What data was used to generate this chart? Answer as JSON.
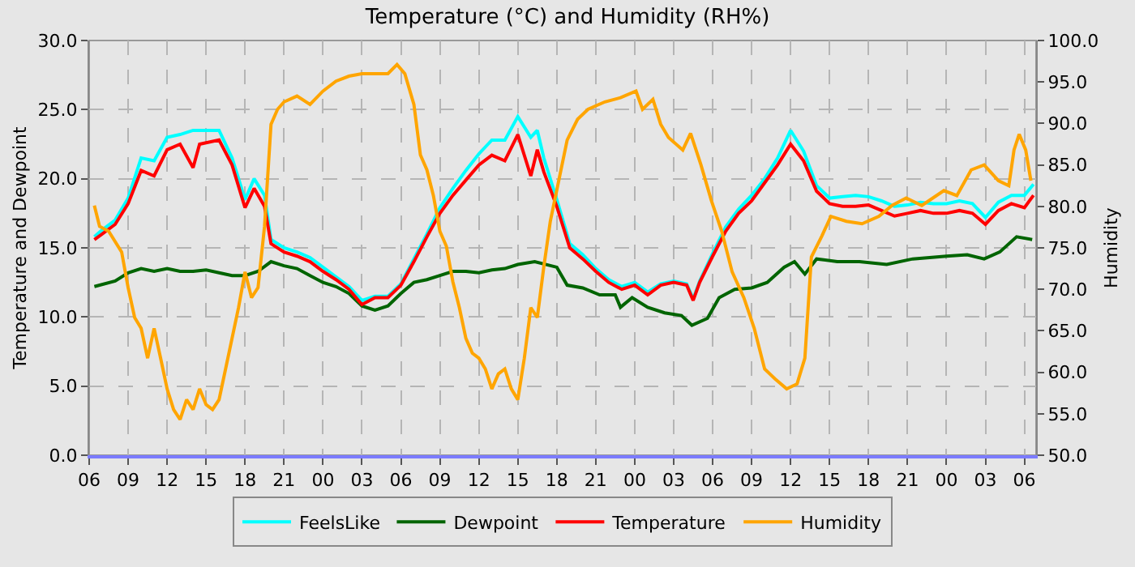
{
  "chart_data": {
    "type": "line",
    "title": "Temperature (°C) and Humidity (RH%)",
    "ylabel": "Temperature and Dewpoint",
    "y2label": "Humidity",
    "xlim": [
      6,
      78.9
    ],
    "xticks": [
      {
        "value": 6,
        "label": "06"
      },
      {
        "value": 9,
        "label": "09"
      },
      {
        "value": 12,
        "label": "12"
      },
      {
        "value": 15,
        "label": "15"
      },
      {
        "value": 18,
        "label": "18"
      },
      {
        "value": 21,
        "label": "21"
      },
      {
        "value": 24,
        "label": "00"
      },
      {
        "value": 27,
        "label": "03"
      },
      {
        "value": 30,
        "label": "06"
      },
      {
        "value": 33,
        "label": "09"
      },
      {
        "value": 36,
        "label": "12"
      },
      {
        "value": 39,
        "label": "15"
      },
      {
        "value": 42,
        "label": "18"
      },
      {
        "value": 45,
        "label": "21"
      },
      {
        "value": 48,
        "label": "00"
      },
      {
        "value": 51,
        "label": "03"
      },
      {
        "value": 54,
        "label": "06"
      },
      {
        "value": 57,
        "label": "09"
      },
      {
        "value": 60,
        "label": "12"
      },
      {
        "value": 63,
        "label": "15"
      },
      {
        "value": 66,
        "label": "18"
      },
      {
        "value": 69,
        "label": "21"
      },
      {
        "value": 72,
        "label": "00"
      },
      {
        "value": 75,
        "label": "03"
      },
      {
        "value": 78,
        "label": "06"
      }
    ],
    "ylim": [
      0,
      30
    ],
    "yticks": [
      {
        "value": 0,
        "label": "0.0"
      },
      {
        "value": 5,
        "label": "5.0"
      },
      {
        "value": 10,
        "label": "10.0"
      },
      {
        "value": 15,
        "label": "15.0"
      },
      {
        "value": 20,
        "label": "20.0"
      },
      {
        "value": 25,
        "label": "25.0"
      },
      {
        "value": 30,
        "label": "30.0"
      }
    ],
    "y2lim": [
      50,
      100
    ],
    "y2ticks": [
      {
        "value": 50,
        "label": "50.0"
      },
      {
        "value": 55,
        "label": "55.0"
      },
      {
        "value": 60,
        "label": "60.0"
      },
      {
        "value": 65,
        "label": "65.0"
      },
      {
        "value": 70,
        "label": "70.0"
      },
      {
        "value": 75,
        "label": "75.0"
      },
      {
        "value": 80,
        "label": "80.0"
      },
      {
        "value": 85,
        "label": "85.0"
      },
      {
        "value": 90,
        "label": "90.0"
      },
      {
        "value": 95,
        "label": "95.0"
      },
      {
        "value": 100,
        "label": "100.0"
      }
    ],
    "grid": true,
    "legend": "bottom",
    "marker": "none",
    "line_style": "solid",
    "series": [
      {
        "name": "FeelsLike",
        "color": "#00ffff",
        "x": [
          6.4,
          7,
          8,
          9,
          10,
          11,
          12,
          13,
          14,
          14.5,
          15,
          16,
          17,
          18,
          18.7,
          19.5,
          20,
          21,
          22,
          23,
          24,
          25,
          26,
          27,
          28,
          29,
          30,
          31,
          32,
          33,
          34,
          35,
          36,
          37,
          38,
          39,
          40,
          40.5,
          41,
          42,
          43,
          44,
          45,
          46,
          47,
          48,
          49,
          50,
          51,
          52,
          52.5,
          53,
          54,
          55,
          56,
          57,
          58,
          59,
          60,
          61,
          62,
          63,
          64,
          65,
          66,
          67,
          68,
          69,
          70,
          71,
          72,
          73,
          74,
          75,
          76,
          77,
          78,
          78.7
        ],
        "values": [
          15.8,
          16.3,
          17.0,
          18.6,
          21.5,
          21.3,
          23.0,
          23.2,
          23.5,
          23.5,
          23.5,
          23.5,
          21.5,
          18.5,
          20.0,
          18.8,
          15.6,
          15.0,
          14.7,
          14.3,
          13.6,
          12.9,
          12.2,
          11.2,
          11.5,
          11.5,
          12.4,
          14.2,
          16.0,
          17.9,
          19.3,
          20.6,
          21.8,
          22.8,
          22.8,
          24.5,
          23.0,
          23.5,
          21.5,
          18.5,
          15.3,
          14.5,
          13.5,
          12.7,
          12.2,
          12.5,
          11.8,
          12.4,
          12.6,
          12.4,
          11.3,
          12.6,
          14.6,
          16.5,
          17.8,
          18.8,
          20.0,
          21.5,
          23.5,
          22.0,
          19.5,
          18.6,
          18.7,
          18.8,
          18.7,
          18.4,
          18.0,
          18.1,
          18.3,
          18.2,
          18.2,
          18.4,
          18.2,
          17.2,
          18.3,
          18.8,
          18.8,
          19.6
        ]
      },
      {
        "name": "Dewpoint",
        "color": "#006400",
        "x": [
          6.4,
          8,
          9,
          10,
          11,
          12,
          13,
          14,
          15,
          16,
          17,
          18,
          19,
          20,
          21,
          22,
          23,
          24,
          25,
          26,
          27,
          28,
          29,
          30,
          31,
          32,
          33,
          34,
          35,
          36,
          37,
          38,
          39,
          40.3,
          42.0,
          42.8,
          44.0,
          45.3,
          46.5,
          46.9,
          47.8,
          49.0,
          50.3,
          51.6,
          52.4,
          53.6,
          54.5,
          55.7,
          57.0,
          58.2,
          59.5,
          60.3,
          61.1,
          62.0,
          63.6,
          65.3,
          67.4,
          69.4,
          72.0,
          73.6,
          74.9,
          76.1,
          77.4,
          78.6
        ],
        "values": [
          12.2,
          12.6,
          13.2,
          13.5,
          13.3,
          13.5,
          13.3,
          13.3,
          13.4,
          13.2,
          13.0,
          13.0,
          13.3,
          14.0,
          13.7,
          13.5,
          13.0,
          12.5,
          12.2,
          11.7,
          10.8,
          10.5,
          10.8,
          11.7,
          12.5,
          12.7,
          13.0,
          13.3,
          13.3,
          13.2,
          13.4,
          13.5,
          13.8,
          14.0,
          13.6,
          12.3,
          12.1,
          11.6,
          11.6,
          10.7,
          11.4,
          10.7,
          10.3,
          10.1,
          9.4,
          9.9,
          11.4,
          12.0,
          12.1,
          12.5,
          13.6,
          14.0,
          13.1,
          14.2,
          14.0,
          14.0,
          13.8,
          14.2,
          14.4,
          14.5,
          14.2,
          14.7,
          15.8,
          15.6
        ]
      },
      {
        "name": "Temperature",
        "color": "#ff0000",
        "x": [
          6.4,
          7,
          8,
          9,
          10,
          11,
          12,
          13,
          14,
          14.5,
          15,
          16,
          17,
          18,
          18.7,
          19.5,
          20,
          21,
          22,
          23,
          24,
          25,
          26,
          27,
          28,
          29,
          30,
          31,
          32,
          33,
          34,
          35,
          36,
          37,
          38,
          39,
          40,
          40.5,
          41,
          42,
          43,
          44,
          45,
          46,
          47,
          48,
          49,
          50,
          51,
          52,
          52.5,
          53,
          54,
          55,
          56,
          57,
          58,
          59,
          60,
          61,
          62,
          63,
          64,
          65,
          66,
          67,
          68,
          69,
          70,
          71,
          72,
          73,
          74,
          75,
          76,
          77,
          78,
          78.7
        ],
        "values": [
          15.6,
          16.0,
          16.7,
          18.2,
          20.6,
          20.2,
          22.1,
          22.5,
          20.8,
          22.5,
          22.6,
          22.8,
          21.0,
          17.9,
          19.3,
          18.0,
          15.3,
          14.7,
          14.4,
          14.0,
          13.3,
          12.7,
          12.0,
          10.9,
          11.4,
          11.4,
          12.3,
          14.0,
          15.8,
          17.5,
          18.8,
          19.9,
          21.0,
          21.7,
          21.3,
          23.2,
          20.2,
          22.1,
          20.5,
          18.0,
          15.0,
          14.2,
          13.3,
          12.5,
          12.0,
          12.3,
          11.6,
          12.3,
          12.5,
          12.3,
          11.2,
          12.5,
          14.4,
          16.2,
          17.5,
          18.4,
          19.7,
          21.0,
          22.5,
          21.3,
          19.1,
          18.2,
          18.0,
          18.0,
          18.1,
          17.7,
          17.3,
          17.5,
          17.7,
          17.5,
          17.5,
          17.7,
          17.5,
          16.7,
          17.7,
          18.2,
          17.9,
          18.8
        ]
      },
      {
        "name": "Humidity",
        "color": "#ffa500",
        "axis": "y2",
        "x": [
          6.4,
          6.8,
          7.5,
          8.5,
          9,
          9.5,
          10,
          10.5,
          11,
          11.5,
          12,
          12.5,
          13,
          13.5,
          14,
          14.5,
          15,
          15.5,
          16,
          16.5,
          17,
          17.5,
          18,
          18.5,
          19,
          19.5,
          20,
          20.5,
          21,
          22,
          23,
          24,
          25,
          26,
          27,
          28,
          29,
          29.7,
          30.3,
          31,
          31.5,
          32,
          32.5,
          33,
          33.5,
          34,
          34.5,
          35,
          35.5,
          36,
          36.5,
          37,
          37.5,
          38,
          38.5,
          39,
          39.5,
          40,
          40.5,
          41,
          41.5,
          42.8,
          43.6,
          44.4,
          45.7,
          46.9,
          48.1,
          48.6,
          49.4,
          50.0,
          50.6,
          51.7,
          52.3,
          53.1,
          53.9,
          54.7,
          55.5,
          56.4,
          57.2,
          58.0,
          58.8,
          59.7,
          60.5,
          61.1,
          61.6,
          62.4,
          63.1,
          64.3,
          65.5,
          66.8,
          67.8,
          68.9,
          70.1,
          71.8,
          72.8,
          73.9,
          74.9,
          76.0,
          76.8,
          77.2,
          77.6,
          78.1,
          78.5
        ],
        "values": [
          80.1,
          77.6,
          77.0,
          74.5,
          70.2,
          66.6,
          65.3,
          61.7,
          65.3,
          61.7,
          58.0,
          55.5,
          54.3,
          56.7,
          55.5,
          58.0,
          56.1,
          55.5,
          56.7,
          60.4,
          64.1,
          67.8,
          72.1,
          69.0,
          70.2,
          77.6,
          89.9,
          91.7,
          92.6,
          93.3,
          92.3,
          93.9,
          95.1,
          95.7,
          96.0,
          96.0,
          96.0,
          97.1,
          96.0,
          92.3,
          86.2,
          84.4,
          81.3,
          77.0,
          75.2,
          70.9,
          67.8,
          64.1,
          62.3,
          61.7,
          60.4,
          58.0,
          59.8,
          60.4,
          58.0,
          56.7,
          61.7,
          67.8,
          66.6,
          72.7,
          78.2,
          88.0,
          90.5,
          91.7,
          92.6,
          93.1,
          93.9,
          91.7,
          92.9,
          89.9,
          88.3,
          86.8,
          88.8,
          85.0,
          80.7,
          77.0,
          72.1,
          69.0,
          65.3,
          60.4,
          59.2,
          58.0,
          58.6,
          61.7,
          73.9,
          76.4,
          78.8,
          78.2,
          77.9,
          78.8,
          80.1,
          81.0,
          80.1,
          81.9,
          81.3,
          84.4,
          85.0,
          83.1,
          82.5,
          86.8,
          88.7,
          86.8,
          83.1
        ]
      }
    ]
  }
}
